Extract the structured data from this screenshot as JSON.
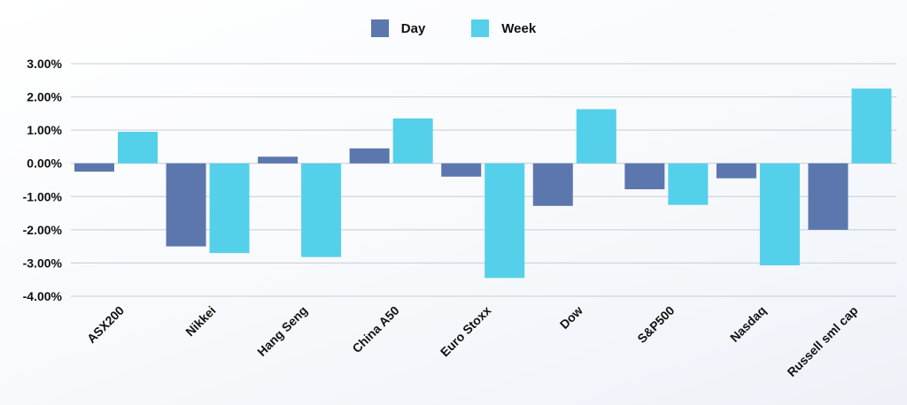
{
  "legend": {
    "day_label": "Day",
    "week_label": "Week"
  },
  "colors": {
    "day": "#5b77ad",
    "week": "#55d0ea",
    "grid": "#c8ccd2"
  },
  "chart_data": {
    "type": "bar",
    "categories": [
      "ASX200",
      "Nikkei",
      "Hang Seng",
      "China A50",
      "Euro Stoxx",
      "Dow",
      "S&P500",
      "Nasdaq",
      "Russell sml cap"
    ],
    "series": [
      {
        "name": "Day",
        "values": [
          -0.25,
          -2.5,
          0.2,
          0.45,
          -0.4,
          -1.28,
          -0.78,
          -0.45,
          -2.0
        ]
      },
      {
        "name": "Week",
        "values": [
          0.95,
          -2.7,
          -2.82,
          1.35,
          -3.45,
          1.63,
          -1.25,
          -3.07,
          2.25
        ]
      }
    ],
    "ylim": [
      -4,
      3
    ],
    "yticks": [
      "3.00%",
      "2.00%",
      "1.00%",
      "0.00%",
      "-1.00%",
      "-2.00%",
      "-3.00%",
      "-4.00%"
    ],
    "ytick_values": [
      3,
      2,
      1,
      0,
      -1,
      -2,
      -3,
      -4
    ],
    "grid": true,
    "legend_position": "top-center"
  }
}
